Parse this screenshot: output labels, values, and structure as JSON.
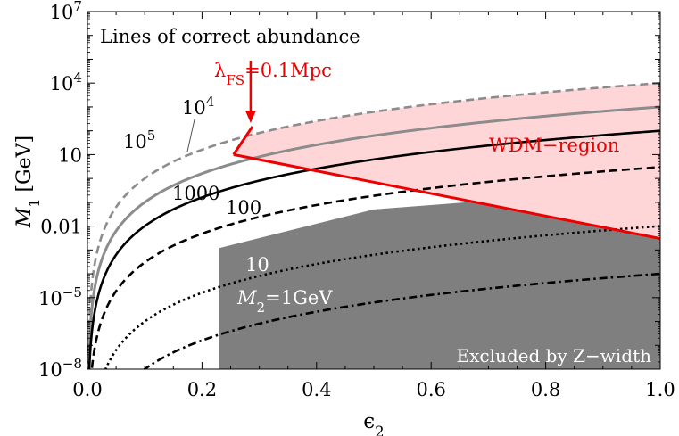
{
  "chart_data": {
    "type": "line",
    "title": "",
    "xlabel": "ϵ",
    "xlabel_sub": "2",
    "ylabel": "M",
    "ylabel_sub": "1",
    "ylabel_unit": "[GeV]",
    "xlim": [
      0,
      1
    ],
    "ylim": [
      1e-08,
      10000000.0
    ],
    "yscale": "log",
    "grid": false,
    "x_ticks": [
      "0.0",
      "0.2",
      "0.4",
      "0.6",
      "0.8",
      "1.0"
    ],
    "y_ticks": [
      {
        "base": "10",
        "exp": "7"
      },
      {
        "base": "10",
        "exp": "4"
      },
      {
        "base": "10",
        "exp": ""
      },
      {
        "base": "0.01",
        "exp": ""
      },
      {
        "base": "10",
        "exp": "−5"
      },
      {
        "base": "10",
        "exp": "−8"
      }
    ],
    "series": [
      {
        "name": "10^5",
        "style": "dashed-gray",
        "color": "#8c8c8c",
        "M1_at_eps1": 10000,
        "curvature": 4
      },
      {
        "name": "10^4",
        "style": "solid-gray",
        "color": "#8c8c8c",
        "M1_at_eps1": 1000,
        "curvature": 4
      },
      {
        "name": "1000",
        "style": "solid",
        "color": "#000000",
        "M1_at_eps1": 100,
        "curvature": 4
      },
      {
        "name": "100",
        "style": "dashed",
        "color": "#000000",
        "M1_at_eps1": 3,
        "curvature": 4
      },
      {
        "name": "10",
        "style": "dotted",
        "color": "#000000",
        "M1_at_eps1": 0.01,
        "curvature": 4
      },
      {
        "name": "1GeV",
        "style": "dashdot",
        "color": "#000000",
        "M1_at_eps1": 0.0001,
        "curvature": 4
      }
    ],
    "regions": {
      "wdm": {
        "label": "WDM−region",
        "color": "#ff0000",
        "fill": "#ffd0d0",
        "lower_line": [
          [
            0.255,
            10
          ],
          [
            1.0,
            0.003
          ]
        ],
        "kink_line": [
          [
            0.255,
            10
          ],
          [
            0.288,
            150
          ]
        ]
      },
      "excluded": {
        "label": "Excluded by Z−width",
        "fill": "#808080",
        "eps_min": 0.23,
        "upper_boundary": [
          [
            0.23,
            0.0012
          ],
          [
            0.5,
            0.05
          ],
          [
            0.8,
            0.18
          ],
          [
            1.0,
            0.3
          ]
        ]
      }
    },
    "annotations": {
      "header": "Lines of correct abundance",
      "free_streaming": {
        "lambda": "λ",
        "sub": "FS",
        "value": "=0.1Mpc",
        "arrow_target": [
          0.288,
          150
        ]
      },
      "label_1e5": {
        "base": "10",
        "exp": "5"
      },
      "label_1e4": {
        "base": "10",
        "exp": "4"
      },
      "label_1000": "1000",
      "label_100": "100",
      "label_10": "10",
      "label_M2": {
        "M": "M",
        "sub": "2",
        "value": "=1GeV"
      }
    },
    "colors": {
      "red": "#ee0000",
      "pink_fill": "#ffd6d8",
      "gray_fill": "#7f7f7f",
      "gray_line": "#8c8c8c"
    }
  }
}
